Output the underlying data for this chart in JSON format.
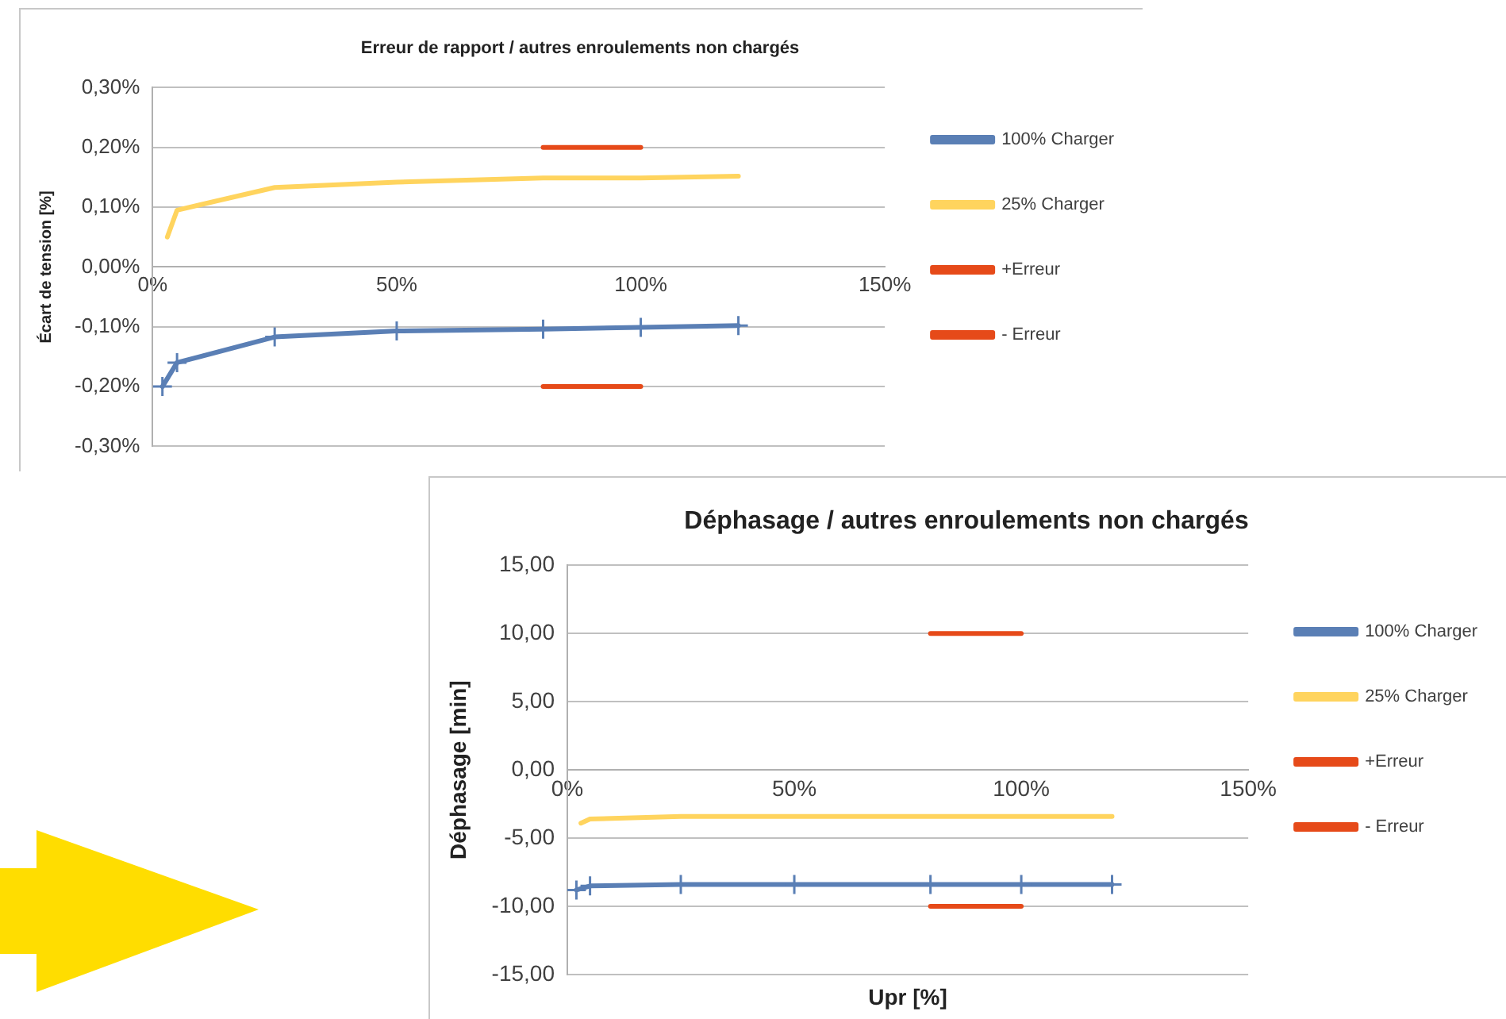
{
  "chart_data": [
    {
      "type": "line",
      "title": "Erreur de rapport / autres enroulements non chargés",
      "ylabel": "Écart de tension [%]",
      "xlim": [
        0,
        150
      ],
      "xticks": [
        {
          "value": 0,
          "label": "0%"
        },
        {
          "value": 50,
          "label": "50%"
        },
        {
          "value": 100,
          "label": "100%"
        },
        {
          "value": 150,
          "label": "150%"
        }
      ],
      "ylim": [
        -0.3,
        0.3
      ],
      "yticks": [
        {
          "value": -0.3,
          "label": "-0,30%"
        },
        {
          "value": -0.2,
          "label": "-0,20%"
        },
        {
          "value": -0.1,
          "label": "-0,10%"
        },
        {
          "value": 0,
          "label": "0,00%"
        },
        {
          "value": 0.1,
          "label": "0,10%"
        },
        {
          "value": 0.2,
          "label": "0,20%"
        },
        {
          "value": 0.3,
          "label": "0,30%"
        }
      ],
      "grid": "y",
      "legend": "right",
      "series": [
        {
          "name": "100% Charger",
          "color": "#5a7fb5",
          "marker": "cross",
          "x": [
            2,
            5,
            25,
            50,
            80,
            100,
            120
          ],
          "values": [
            -0.2,
            -0.16,
            -0.117,
            -0.107,
            -0.104,
            -0.101,
            -0.098
          ]
        },
        {
          "name": "25% Charger",
          "color": "#ffd45e",
          "marker": "none",
          "x": [
            3,
            5,
            25,
            50,
            80,
            100,
            120
          ],
          "values": [
            0.05,
            0.095,
            0.133,
            0.142,
            0.149,
            0.149,
            0.152
          ]
        },
        {
          "name": "+Erreur",
          "color": "#e64a19",
          "marker": "none",
          "x": [
            80,
            100
          ],
          "values": [
            0.2,
            0.2
          ]
        },
        {
          "name": "- Erreur",
          "color": "#e64a19",
          "marker": "none",
          "x": [
            80,
            100
          ],
          "values": [
            -0.2,
            -0.2
          ]
        }
      ]
    },
    {
      "type": "line",
      "title": "Déphasage / autres enroulements non chargés",
      "xlabel": "Upr [%]",
      "ylabel": "Déphasage [min]",
      "xlim": [
        0,
        150
      ],
      "xticks": [
        {
          "value": 0,
          "label": "0%"
        },
        {
          "value": 50,
          "label": "50%"
        },
        {
          "value": 100,
          "label": "100%"
        },
        {
          "value": 150,
          "label": "150%"
        }
      ],
      "ylim": [
        -15,
        15
      ],
      "yticks": [
        {
          "value": -15,
          "label": "-15,00"
        },
        {
          "value": -10,
          "label": "-10,00"
        },
        {
          "value": -5,
          "label": "-5,00"
        },
        {
          "value": 0,
          "label": "0,00"
        },
        {
          "value": 5,
          "label": "5,00"
        },
        {
          "value": 10,
          "label": "10,00"
        },
        {
          "value": 15,
          "label": "15,00"
        }
      ],
      "grid": "y",
      "legend": "right",
      "series": [
        {
          "name": "100% Charger",
          "color": "#5a7fb5",
          "marker": "cross",
          "x": [
            2,
            5,
            25,
            50,
            80,
            100,
            120
          ],
          "values": [
            -8.8,
            -8.5,
            -8.4,
            -8.4,
            -8.4,
            -8.4,
            -8.4
          ]
        },
        {
          "name": "25% Charger",
          "color": "#ffd45e",
          "marker": "none",
          "x": [
            3,
            5,
            25,
            50,
            80,
            100,
            120
          ],
          "values": [
            -3.9,
            -3.6,
            -3.4,
            -3.4,
            -3.4,
            -3.4,
            -3.4
          ]
        },
        {
          "name": "+Erreur",
          "color": "#e64a19",
          "marker": "none",
          "x": [
            80,
            100
          ],
          "values": [
            10,
            10
          ]
        },
        {
          "name": "- Erreur",
          "color": "#e64a19",
          "marker": "none",
          "x": [
            80,
            100
          ],
          "values": [
            -10,
            -10
          ]
        }
      ]
    }
  ]
}
